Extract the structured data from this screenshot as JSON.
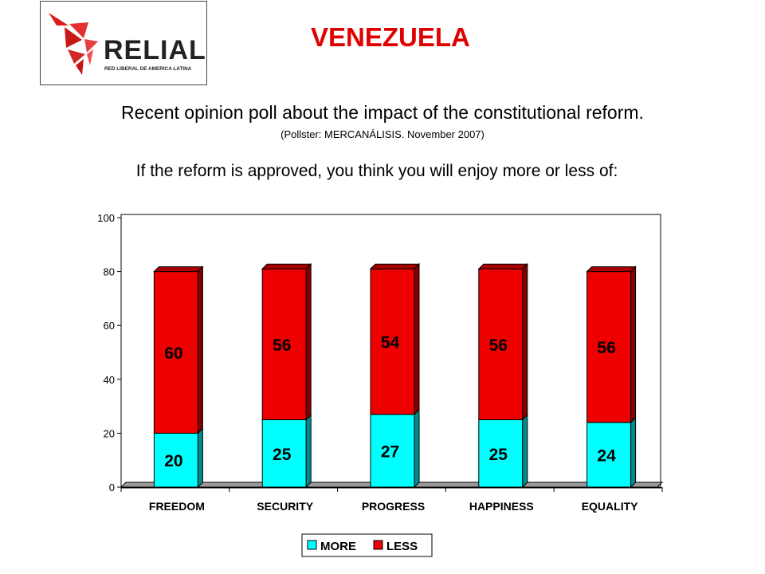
{
  "logo": {
    "name": "RELIAL",
    "tagline": "RED LIBERAL DE AMERICA LATINA"
  },
  "title": "VENEZUELA",
  "subtitle": "Recent opinion poll about the impact of the constitutional reform.",
  "pollster": "(Pollster: MERCANÁLISIS. November 2007)",
  "question": "If the reform is approved, you think you will enjoy more or less of:",
  "colors": {
    "title": "#e00000",
    "more": "#00ffff",
    "less": "#ee0000",
    "floor": "#999999"
  },
  "chart_data": {
    "type": "bar",
    "stacked": true,
    "categories": [
      "FREEDOM",
      "SECURITY",
      "PROGRESS",
      "HAPPINESS",
      "EQUALITY"
    ],
    "series": [
      {
        "name": "MORE",
        "values": [
          20,
          25,
          27,
          25,
          24
        ]
      },
      {
        "name": "LESS",
        "values": [
          60,
          56,
          54,
          56,
          56
        ]
      }
    ],
    "ylim": [
      0,
      100
    ],
    "yticks": [
      0,
      20,
      40,
      60,
      80,
      100
    ],
    "legend": "bottom-center"
  }
}
